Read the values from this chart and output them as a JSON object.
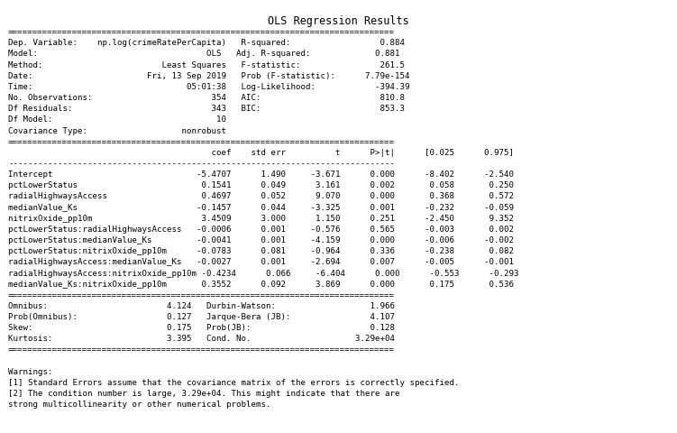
{
  "title": "OLS Regression Results",
  "lines": [
    "==============================================================================",
    "Dep. Variable:    np.log(crimeRatePerCapita)   R-squared:                  0.884",
    "Model:                                  OLS   Adj. R-squared:             0.881",
    "Method:                        Least Squares   F-statistic:                261.5",
    "Date:                       Fri, 13 Sep 2019   Prob (F-statistic):      7.79e-154",
    "Time:                               05:01:38   Log-Likelihood:            -394.39",
    "No. Observations:                        354   AIC:                        810.8",
    "Df Residuals:                            343   BIC:                        853.3",
    "Df Model:                                 10",
    "Covariance Type:                   nonrobust",
    "==============================================================================",
    "                                         coef    std err          t      P>|t|      [0.025      0.975]",
    "------------------------------------------------------------------------------",
    "Intercept                             -5.4707      1.490     -3.671      0.000      -8.402      -2.540",
    "pctLowerStatus                         0.1541      0.049      3.161      0.002       0.058       0.250",
    "radialHighwaysAccess                   0.4697      0.052      9.070      0.000       0.368       0.572",
    "medianValue_Ks                        -0.1457      0.044     -3.325      0.001      -0.232      -0.059",
    "nitrixOxide_pp10m                      3.4509      3.000      1.150      0.251      -2.450       9.352",
    "pctLowerStatus:radialHighwaysAccess   -0.0006      0.001     -0.576      0.565      -0.003       0.002",
    "pctLowerStatus:medianValue_Ks         -0.0041      0.001     -4.159      0.000      -0.006      -0.002",
    "pctLowerStatus:nitrixOxide_pp10m      -0.0783      0.081     -0.964      0.336      -0.238       0.082",
    "radialHighwaysAccess:medianValue_Ks   -0.0027      0.001     -2.694      0.007      -0.005      -0.001",
    "radialHighwaysAccess:nitrixOxide_pp10m -0.4234      0.066     -6.404      0.000      -0.553      -0.293",
    "medianValue_Ks:nitrixOxide_pp10m       0.3552      0.092      3.869      0.000       0.175       0.536",
    "==============================================================================",
    "Omnibus:                        4.124   Durbin-Watson:                   1.966",
    "Prob(Omnibus):                  0.127   Jarque-Bera (JB):                4.107",
    "Skew:                           0.175   Prob(JB):                        0.128",
    "Kurtosis:                       3.395   Cond. No.                     3.29e+04",
    "==============================================================================",
    "",
    "Warnings:",
    "[1] Standard Errors assume that the covariance matrix of the errors is correctly specified.",
    "[2] The condition number is large, 3.29e+04. This might indicate that there are",
    "strong multicollinearity or other numerical problems."
  ],
  "font_size": 6.6,
  "title_font_size": 8.5,
  "bg_color": "#ffffff",
  "text_color": "#000000",
  "font_family": "DejaVu Sans Mono"
}
